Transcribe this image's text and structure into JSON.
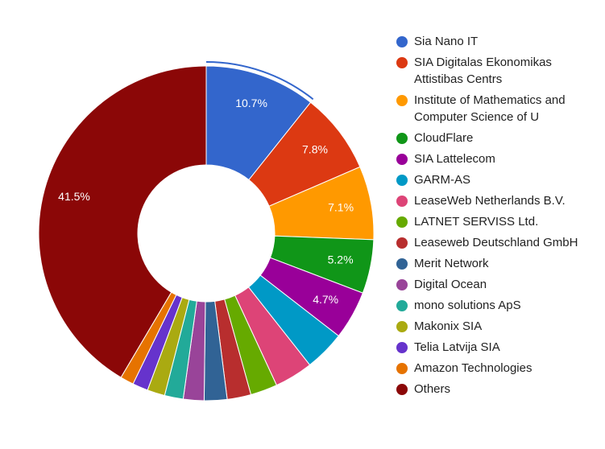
{
  "chart_data": {
    "type": "donut",
    "categories": [
      "Sia Nano IT",
      "SIA Digitalas Ekonomikas Attistibas Centrs",
      "Institute of Mathematics and Computer Science of U",
      "CloudFlare",
      "SIA Lattelecom",
      "GARM-AS",
      "LeaseWeb Netherlands B.V.",
      "LATNET SERVISS Ltd.",
      "Leaseweb Deutschland GmbH",
      "Merit Network",
      "Digital Ocean",
      "mono solutions ApS",
      "Makonix SIA",
      "Telia Latvija SIA",
      "Amazon Technologies",
      "Others"
    ],
    "values": [
      10.7,
      7.8,
      7.1,
      5.2,
      4.7,
      3.9,
      3.7,
      2.6,
      2.3,
      2.2,
      2.0,
      1.8,
      1.7,
      1.5,
      1.3,
      41.5
    ],
    "value_labels": [
      "10.7%",
      "7.8%",
      "7.1%",
      "5.2%",
      "4.7%",
      null,
      null,
      null,
      null,
      null,
      null,
      null,
      null,
      null,
      null,
      "41.5%"
    ],
    "colors": [
      "#3366cc",
      "#dc3912",
      "#ff9900",
      "#109618",
      "#990099",
      "#0099c6",
      "#dd4477",
      "#66aa00",
      "#b82e2e",
      "#316395",
      "#994499",
      "#22aa99",
      "#aaaa11",
      "#6633cc",
      "#e67300",
      "#8b0707"
    ],
    "legend": "right"
  }
}
